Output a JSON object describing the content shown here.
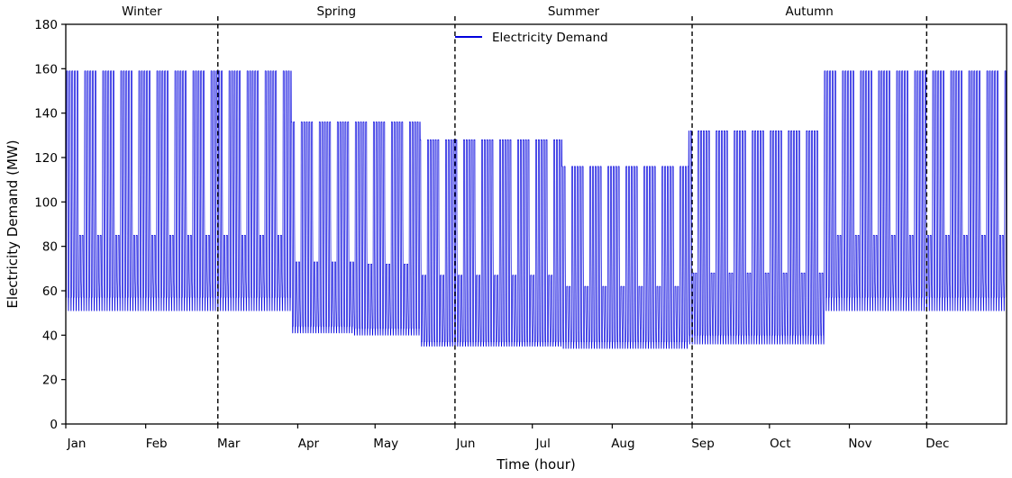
{
  "chart_data": {
    "type": "line",
    "title": "",
    "xlabel": "Time (hour)",
    "ylabel": "Electricity Demand (MW)",
    "xlim": [
      0,
      8760
    ],
    "ylim": [
      0,
      180
    ],
    "yticks": [
      0,
      20,
      40,
      60,
      80,
      100,
      120,
      140,
      160,
      180
    ],
    "month_ticks": [
      {
        "label": "Jan",
        "hour": 0
      },
      {
        "label": "Feb",
        "hour": 744
      },
      {
        "label": "Mar",
        "hour": 1416
      },
      {
        "label": "Apr",
        "hour": 2160
      },
      {
        "label": "May",
        "hour": 2880
      },
      {
        "label": "Jun",
        "hour": 3624
      },
      {
        "label": "Jul",
        "hour": 4344
      },
      {
        "label": "Aug",
        "hour": 5088
      },
      {
        "label": "Sep",
        "hour": 5832
      },
      {
        "label": "Oct",
        "hour": 6552
      },
      {
        "label": "Nov",
        "hour": 7296
      },
      {
        "label": "Dec",
        "hour": 8016
      }
    ],
    "season_boundaries": [
      1416,
      3624,
      5832,
      8016
    ],
    "seasons": [
      {
        "name": "Winter",
        "start": 0,
        "end": 1416
      },
      {
        "name": "Spring",
        "start": 1416,
        "end": 3624
      },
      {
        "name": "Summer",
        "start": 3624,
        "end": 5832
      },
      {
        "name": "Autumn",
        "start": 5832,
        "end": 8016
      }
    ],
    "series": [
      {
        "name": "Electricity Demand",
        "color": "#0000dd",
        "profile_by_season_weekday": [
          {
            "season": "Winter",
            "peak": 159,
            "base": 57
          },
          {
            "season": "Spring",
            "peak": 136,
            "base": 44
          },
          {
            "season": "Summer",
            "peak": 128,
            "base": 37
          },
          {
            "season": "Autumn",
            "peak": 132,
            "base": 40
          }
        ],
        "segments": [
          {
            "start": 0,
            "end": 2100,
            "peak": 159,
            "weekend_peak": 85,
            "base": 57,
            "low": 51
          },
          {
            "start": 2100,
            "end": 2680,
            "peak": 136,
            "weekend_peak": 73,
            "base": 44,
            "low": 41
          },
          {
            "start": 2680,
            "end": 3300,
            "peak": 136,
            "weekend_peak": 72,
            "base": 43,
            "low": 40
          },
          {
            "start": 3300,
            "end": 4620,
            "peak": 128,
            "weekend_peak": 67,
            "base": 37,
            "low": 35
          },
          {
            "start": 4620,
            "end": 5800,
            "peak": 116,
            "weekend_peak": 62,
            "base": 37,
            "low": 34
          },
          {
            "start": 5800,
            "end": 7060,
            "peak": 132,
            "weekend_peak": 68,
            "base": 40,
            "low": 36
          },
          {
            "start": 7060,
            "end": 8760,
            "peak": 159,
            "weekend_peak": 85,
            "base": 57,
            "low": 51
          }
        ]
      }
    ],
    "legend": "top-center",
    "grid": false
  }
}
